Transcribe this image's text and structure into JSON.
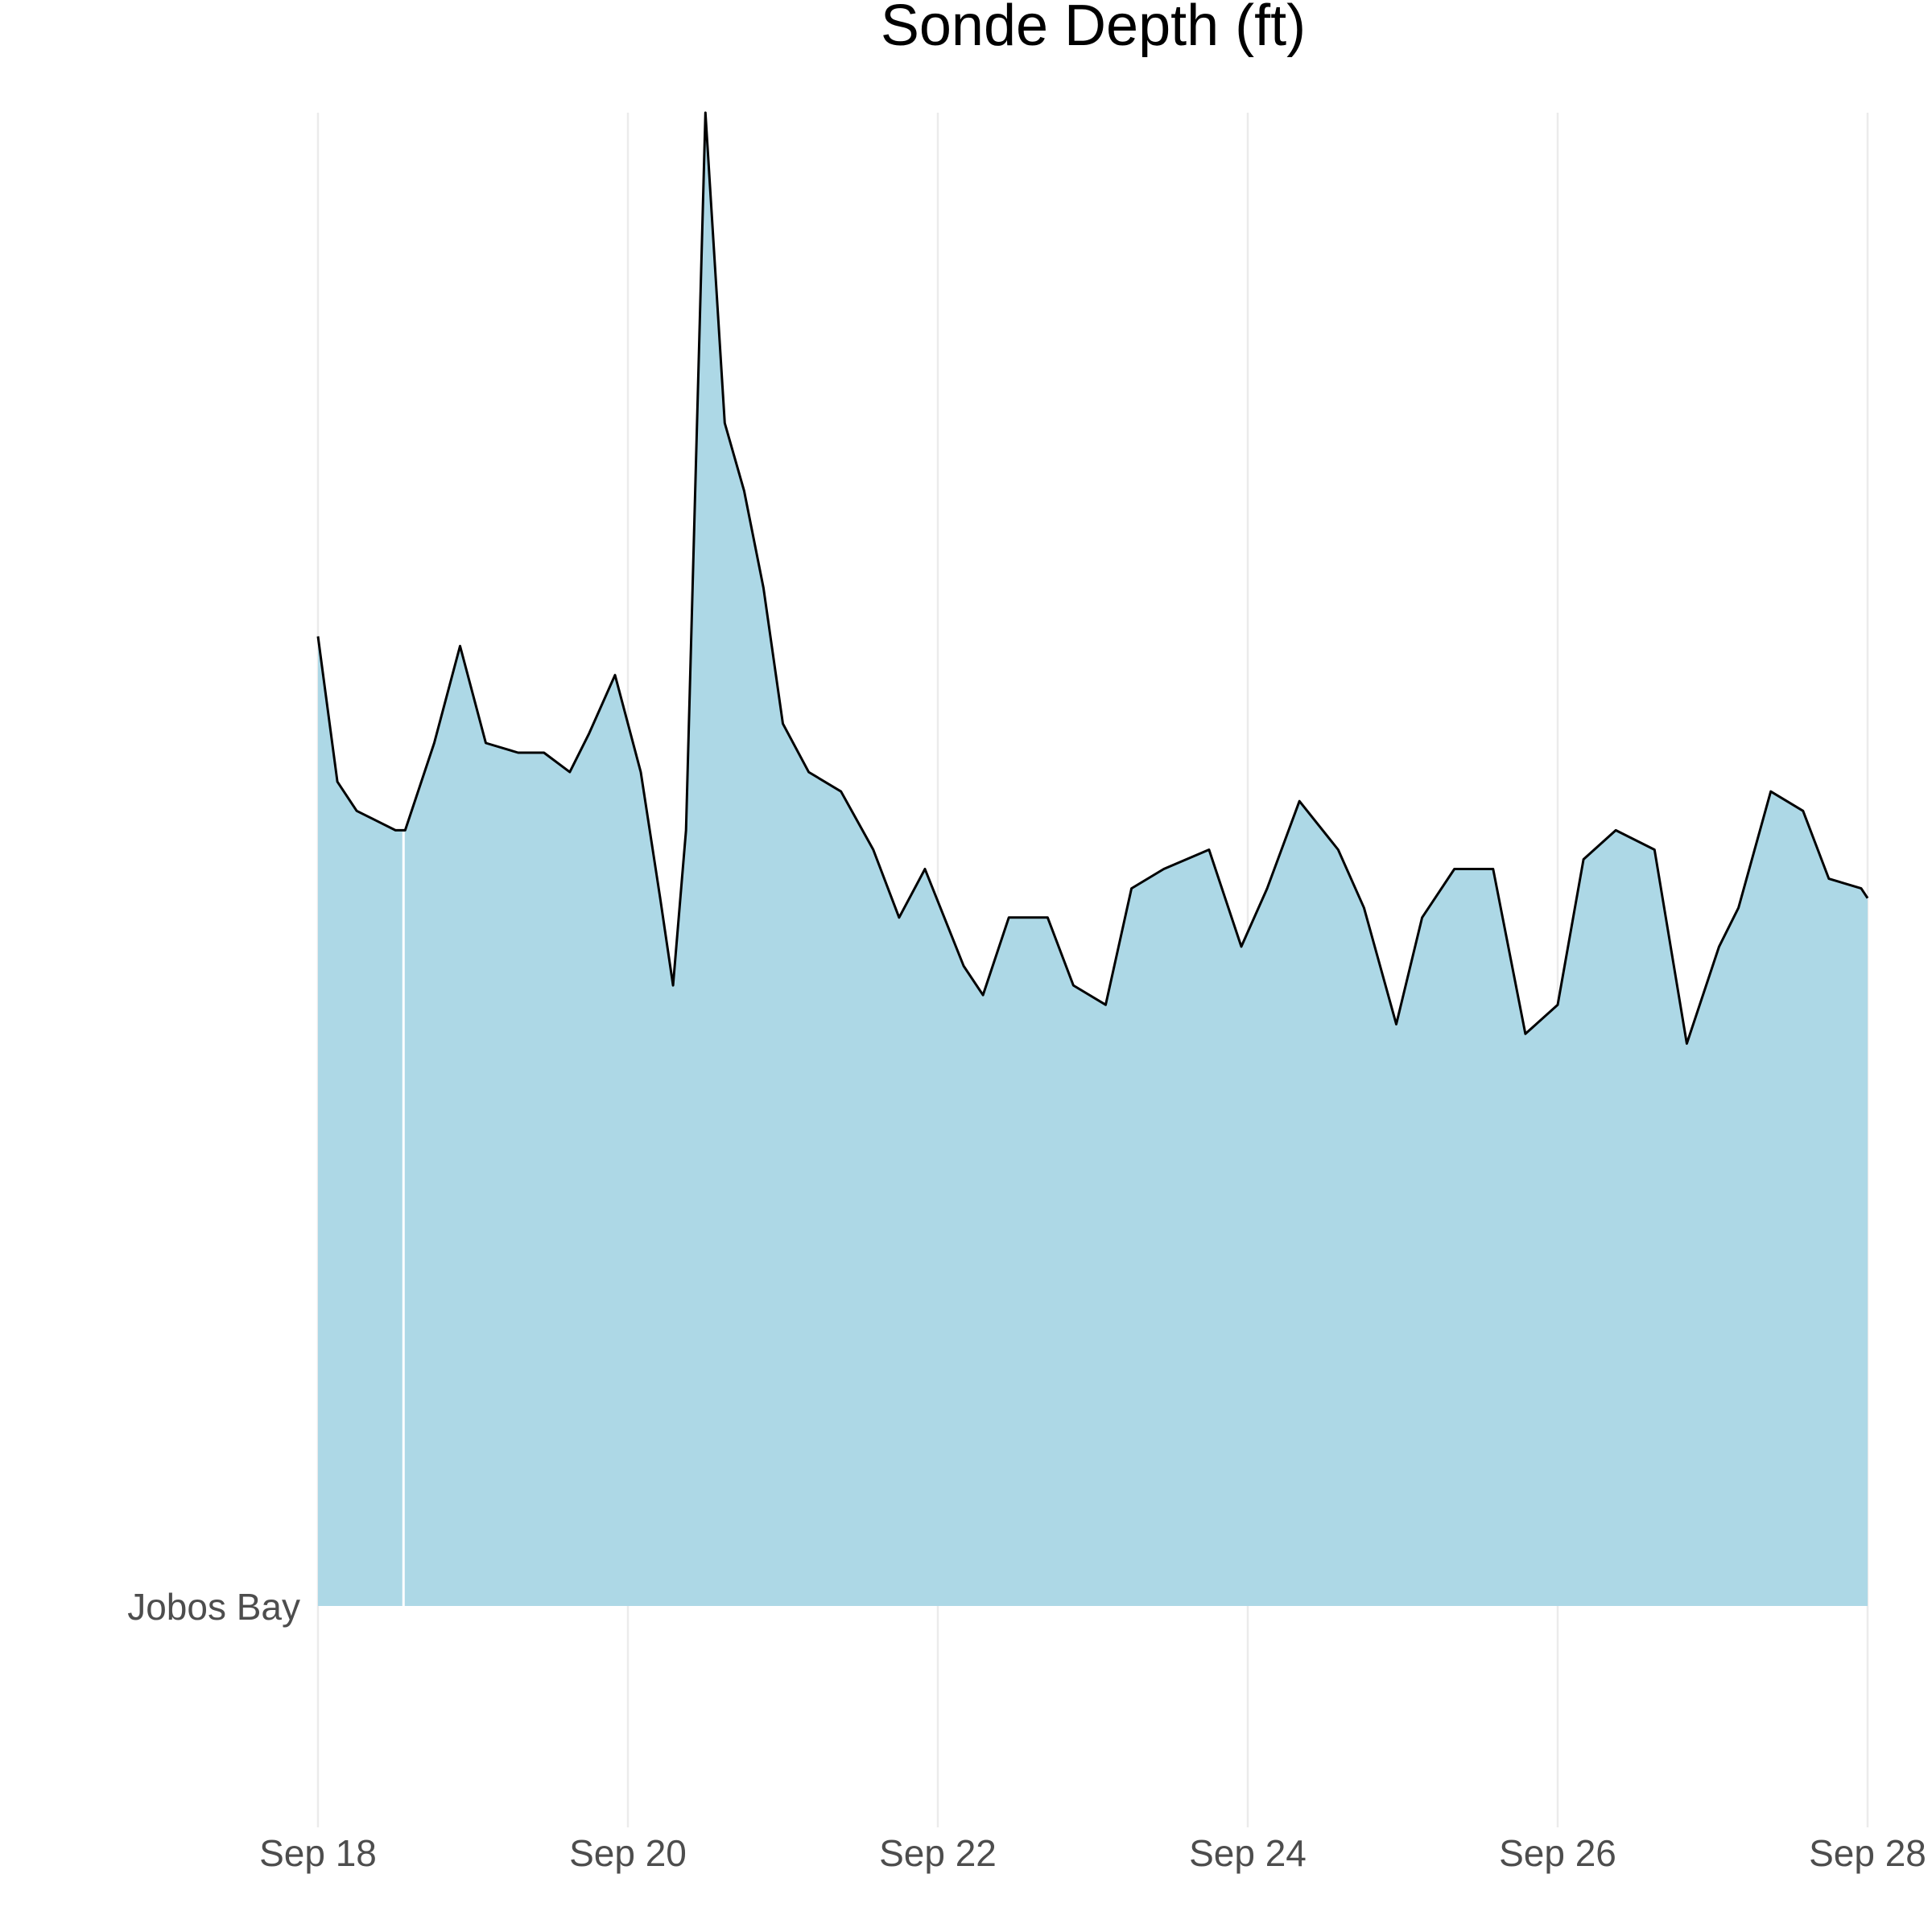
{
  "chart_data": {
    "type": "area",
    "title": "Sonde Depth (ft)",
    "xlabel": "",
    "ylabel": "",
    "x_ticks": [
      "Sep 18",
      "Sep 20",
      "Sep 22",
      "Sep 24",
      "Sep 26",
      "Sep 28"
    ],
    "x_tick_days": [
      18,
      20,
      22,
      24,
      26,
      28
    ],
    "xlim": [
      "Sep 18",
      "Sep 28"
    ],
    "y_category": "Jobos Bay",
    "ylim_relative": [
      0,
      1.55
    ],
    "grid": "vertical",
    "legend": "none",
    "fill_color": "#add8e6",
    "line_color": "#000000",
    "gap": [
      "Sep 18 13:00",
      "Sep 18 13:30"
    ],
    "series": [
      {
        "x": [
          "Sep 18 00:00",
          "Sep 18 03:00",
          "Sep 18 06:00",
          "Sep 18 09:00",
          "Sep 18 12:00",
          "Sep 18 13:00",
          "Sep 18 13:30",
          "Sep 18 18:00",
          "Sep 18 22:00",
          "Sep 19 02:00",
          "Sep 19 07:00",
          "Sep 19 11:00",
          "Sep 19 15:00",
          "Sep 19 18:00",
          "Sep 19 22:00",
          "Sep 20 02:00",
          "Sep 20 05:00",
          "Sep 20 07:00",
          "Sep 20 09:00",
          "Sep 20 12:00",
          "Sep 20 15:00",
          "Sep 20 18:00",
          "Sep 20 21:00",
          "Sep 21 00:00",
          "Sep 21 04:00",
          "Sep 21 09:00",
          "Sep 21 14:00",
          "Sep 21 18:00",
          "Sep 21 22:00",
          "Sep 22 04:00",
          "Sep 22 07:00",
          "Sep 22 11:00",
          "Sep 22 17:00",
          "Sep 22 21:00",
          "Sep 23 02:00",
          "Sep 23 06:00",
          "Sep 23 11:00",
          "Sep 23 18:00",
          "Sep 23 23:00",
          "Sep 24 03:00",
          "Sep 24 08:00",
          "Sep 24 14:00",
          "Sep 24 18:00",
          "Sep 24 23:00",
          "Sep 25 03:00",
          "Sep 25 08:00",
          "Sep 25 14:00",
          "Sep 25 19:00",
          "Sep 26 00:00",
          "Sep 26 04:00",
          "Sep 26 09:00",
          "Sep 26 15:00",
          "Sep 26 20:00",
          "Sep 27 01:00",
          "Sep 27 04:00",
          "Sep 27 09:00",
          "Sep 27 14:00",
          "Sep 27 18:00",
          "Sep 27 23:00",
          "Sep 28 00:00"
        ],
        "y": [
          1.0,
          0.85,
          0.82,
          0.81,
          0.8,
          0.8,
          0.8,
          0.89,
          0.99,
          0.89,
          0.88,
          0.88,
          0.86,
          0.9,
          0.96,
          0.86,
          0.73,
          0.64,
          0.8,
          1.54,
          1.22,
          1.15,
          1.05,
          0.91,
          0.86,
          0.84,
          0.78,
          0.71,
          0.76,
          0.66,
          0.63,
          0.71,
          0.71,
          0.64,
          0.62,
          0.74,
          0.76,
          0.78,
          0.68,
          0.74,
          0.83,
          0.78,
          0.72,
          0.6,
          0.71,
          0.76,
          0.76,
          0.59,
          0.62,
          0.77,
          0.8,
          0.78,
          0.58,
          0.68,
          0.72,
          0.84,
          0.82,
          0.75,
          0.74,
          0.73
        ]
      }
    ]
  }
}
